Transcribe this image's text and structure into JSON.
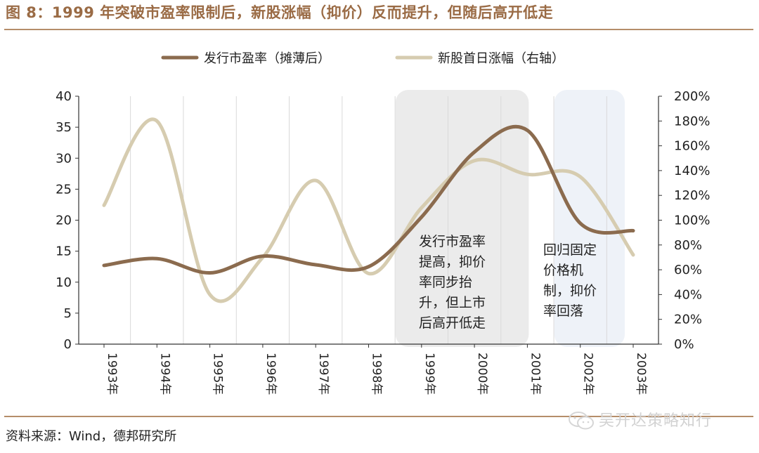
{
  "figure": {
    "title": "图 8：1999 年突破市盈率限制后，新股涨幅（抑价）反而提升，但随后高开低走",
    "source": "资料来源：Wind，德邦研究所",
    "watermark": "吴开达策略知行"
  },
  "chart_data": {
    "type": "line",
    "categories": [
      "1993年",
      "1994年",
      "1995年",
      "1996年",
      "1997年",
      "1998年",
      "1999年",
      "2000年",
      "2001年",
      "2002年",
      "2003年"
    ],
    "series": [
      {
        "name": "发行市盈率（摊薄后）",
        "axis": "left",
        "color": "#8b6b4e",
        "values": [
          12.7,
          13.8,
          11.5,
          14.2,
          12.8,
          12.5,
          20.5,
          31.0,
          34.5,
          19.5,
          18.3
        ]
      },
      {
        "name": "新股首日涨幅（右轴）",
        "axis": "right",
        "color": "#d6ccb0",
        "values": [
          1.12,
          1.8,
          0.4,
          0.7,
          1.32,
          0.57,
          1.1,
          1.48,
          1.37,
          1.35,
          0.72
        ]
      }
    ],
    "y_left": {
      "min": 0,
      "max": 40,
      "ticks": [
        "0",
        "5",
        "10",
        "15",
        "20",
        "25",
        "30",
        "35",
        "40"
      ]
    },
    "y_right": {
      "min": 0,
      "max": 2.0,
      "ticks": [
        "0%",
        "20%",
        "40%",
        "60%",
        "80%",
        "100%",
        "120%",
        "140%",
        "160%",
        "180%",
        "200%"
      ]
    },
    "grid": "vertical",
    "legend_position": "top",
    "annotations": [
      {
        "id": "box-1999-2001",
        "range": [
          "1999年",
          "2001年"
        ],
        "color": "#ebebeb",
        "lines": [
          "发行市盈率",
          "提高，抑价",
          "率同步抬",
          "升，但上市",
          "后高开低走"
        ]
      },
      {
        "id": "box-2002-2003",
        "range": [
          "2002年",
          "2003年"
        ],
        "color": "#eef2f8",
        "lines": [
          "回归固定",
          "价格机",
          "制，抑价",
          "率回落"
        ]
      }
    ]
  }
}
